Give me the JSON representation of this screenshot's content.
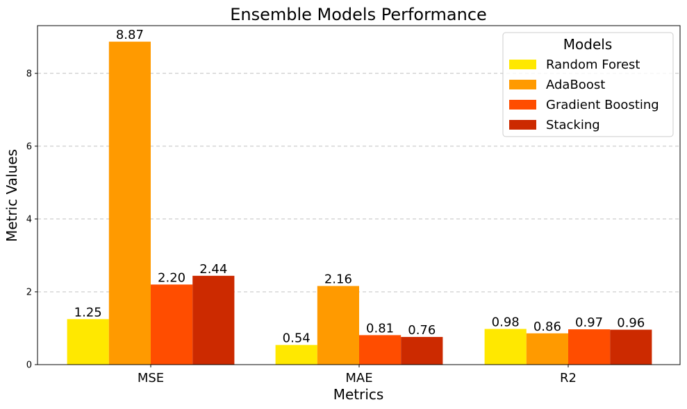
{
  "chart_data": {
    "type": "bar",
    "title": "Ensemble Models Performance",
    "xlabel": "Metrics",
    "ylabel": "Metric Values",
    "categories": [
      "MSE",
      "MAE",
      "R2"
    ],
    "series": [
      {
        "name": "Random Forest",
        "values": [
          1.25,
          0.54,
          0.98
        ],
        "labels": [
          "1.25",
          "0.54",
          "0.98"
        ],
        "color": "#ffe800"
      },
      {
        "name": "AdaBoost",
        "values": [
          8.87,
          2.16,
          0.86
        ],
        "labels": [
          "8.87",
          "2.16",
          "0.86"
        ],
        "color": "#ff9a00"
      },
      {
        "name": "Gradient Boosting",
        "values": [
          2.2,
          0.81,
          0.97
        ],
        "labels": [
          "2.20",
          "0.81",
          "0.97"
        ],
        "color": "#ff4d00"
      },
      {
        "name": "Stacking",
        "values": [
          2.44,
          0.76,
          0.96
        ],
        "labels": [
          "2.44",
          "0.76",
          "0.96"
        ],
        "color": "#cc2a00"
      }
    ],
    "yticks": [
      0,
      2,
      4,
      6,
      8
    ],
    "ylim": [
      0,
      9.31
    ],
    "grid": "y-dashed",
    "legend": {
      "title": "Models",
      "placement": "top-right"
    }
  }
}
